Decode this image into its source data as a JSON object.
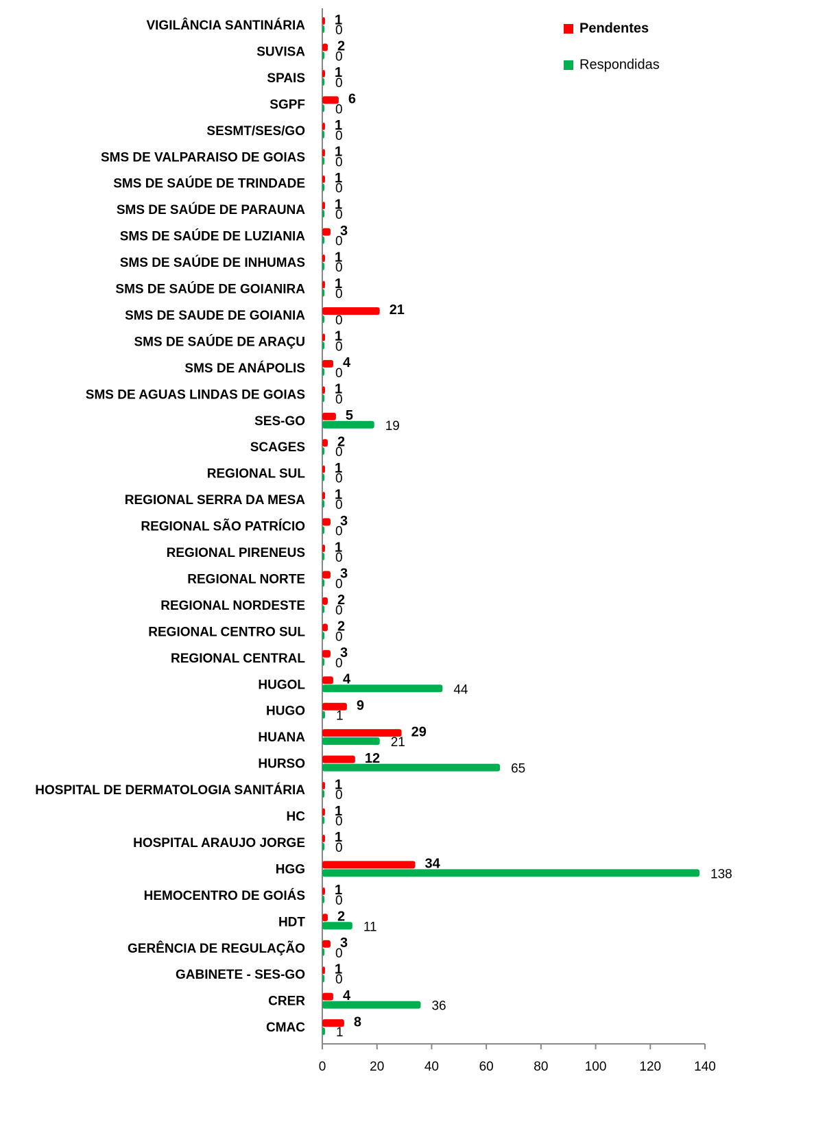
{
  "chart_data": {
    "type": "barh",
    "categories": [
      "VIGILÂNCIA SANTINÁRIA",
      "SUVISA",
      "SPAIS",
      "SGPF",
      "SESMT/SES/GO",
      "SMS DE VALPARAISO DE GOIAS",
      "SMS DE SAÚDE DE TRINDADE",
      "SMS DE SAÚDE DE PARAUNA",
      "SMS DE SAÚDE DE LUZIANIA",
      "SMS DE SAÚDE DE INHUMAS",
      "SMS DE SAÚDE DE GOIANIRA",
      "SMS DE SAUDE DE GOIANIA",
      "SMS DE SAÚDE DE ARAÇU",
      "SMS DE ANÁPOLIS",
      "SMS DE AGUAS LINDAS DE GOIAS",
      "SES-GO",
      "SCAGES",
      "REGIONAL SUL",
      "REGIONAL SERRA DA MESA",
      "REGIONAL SÃO PATRÍCIO",
      "REGIONAL PIRENEUS",
      "REGIONAL NORTE",
      "REGIONAL NORDESTE",
      "REGIONAL CENTRO SUL",
      "REGIONAL CENTRAL",
      "HUGOL",
      "HUGO",
      "HUANA",
      "HURSO",
      "HOSPITAL DE DERMATOLOGIA SANITÁRIA",
      "HC",
      "HOSPITAL ARAUJO JORGE",
      "HGG",
      "HEMOCENTRO DE GOIÁS",
      "HDT",
      "GERÊNCIA DE REGULAÇÃO",
      "GABINETE - SES-GO",
      "CRER",
      "CMAC"
    ],
    "series": [
      {
        "name": "Pendentes",
        "color": "#ff0000",
        "values": [
          1,
          2,
          1,
          6,
          1,
          1,
          1,
          1,
          3,
          1,
          1,
          21,
          1,
          4,
          1,
          5,
          2,
          1,
          1,
          3,
          1,
          3,
          2,
          2,
          3,
          4,
          9,
          29,
          12,
          1,
          1,
          1,
          34,
          1,
          2,
          3,
          1,
          4,
          8
        ]
      },
      {
        "name": "Respondidas",
        "color": "#00b050",
        "values": [
          0,
          0,
          0,
          0,
          0,
          0,
          0,
          0,
          0,
          0,
          0,
          0,
          0,
          0,
          0,
          19,
          0,
          0,
          0,
          0,
          0,
          0,
          0,
          0,
          0,
          44,
          1,
          21,
          65,
          0,
          0,
          0,
          138,
          0,
          11,
          0,
          0,
          36,
          1
        ]
      }
    ],
    "xlim": [
      0,
      140
    ],
    "xticks": [
      0,
      20,
      40,
      60,
      80,
      100,
      120,
      140
    ],
    "legend": "top-right"
  }
}
